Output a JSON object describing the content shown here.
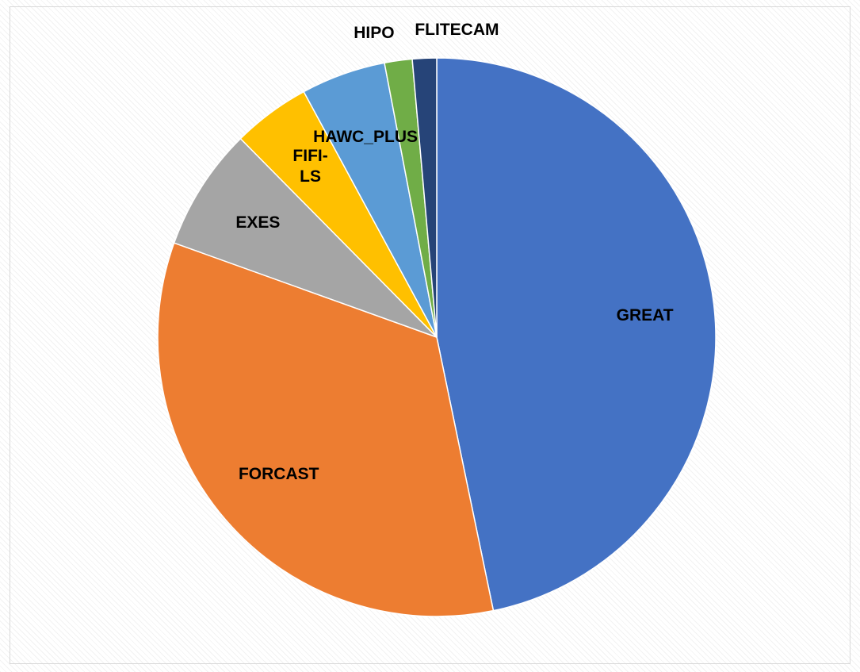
{
  "chart_data": {
    "type": "pie",
    "categories": [
      "GREAT",
      "FORCAST",
      "EXES",
      "FIFI-LS",
      "HAWC_PLUS",
      "HIPO",
      "FLITECAM"
    ],
    "values": [
      46.7,
      33.7,
      7.1,
      4.5,
      4.9,
      1.6,
      1.4
    ],
    "colors": [
      "#4472c4",
      "#ed7d31",
      "#a5a5a5",
      "#ffc000",
      "#5b9bd5",
      "#70ad47",
      "#264478"
    ]
  }
}
